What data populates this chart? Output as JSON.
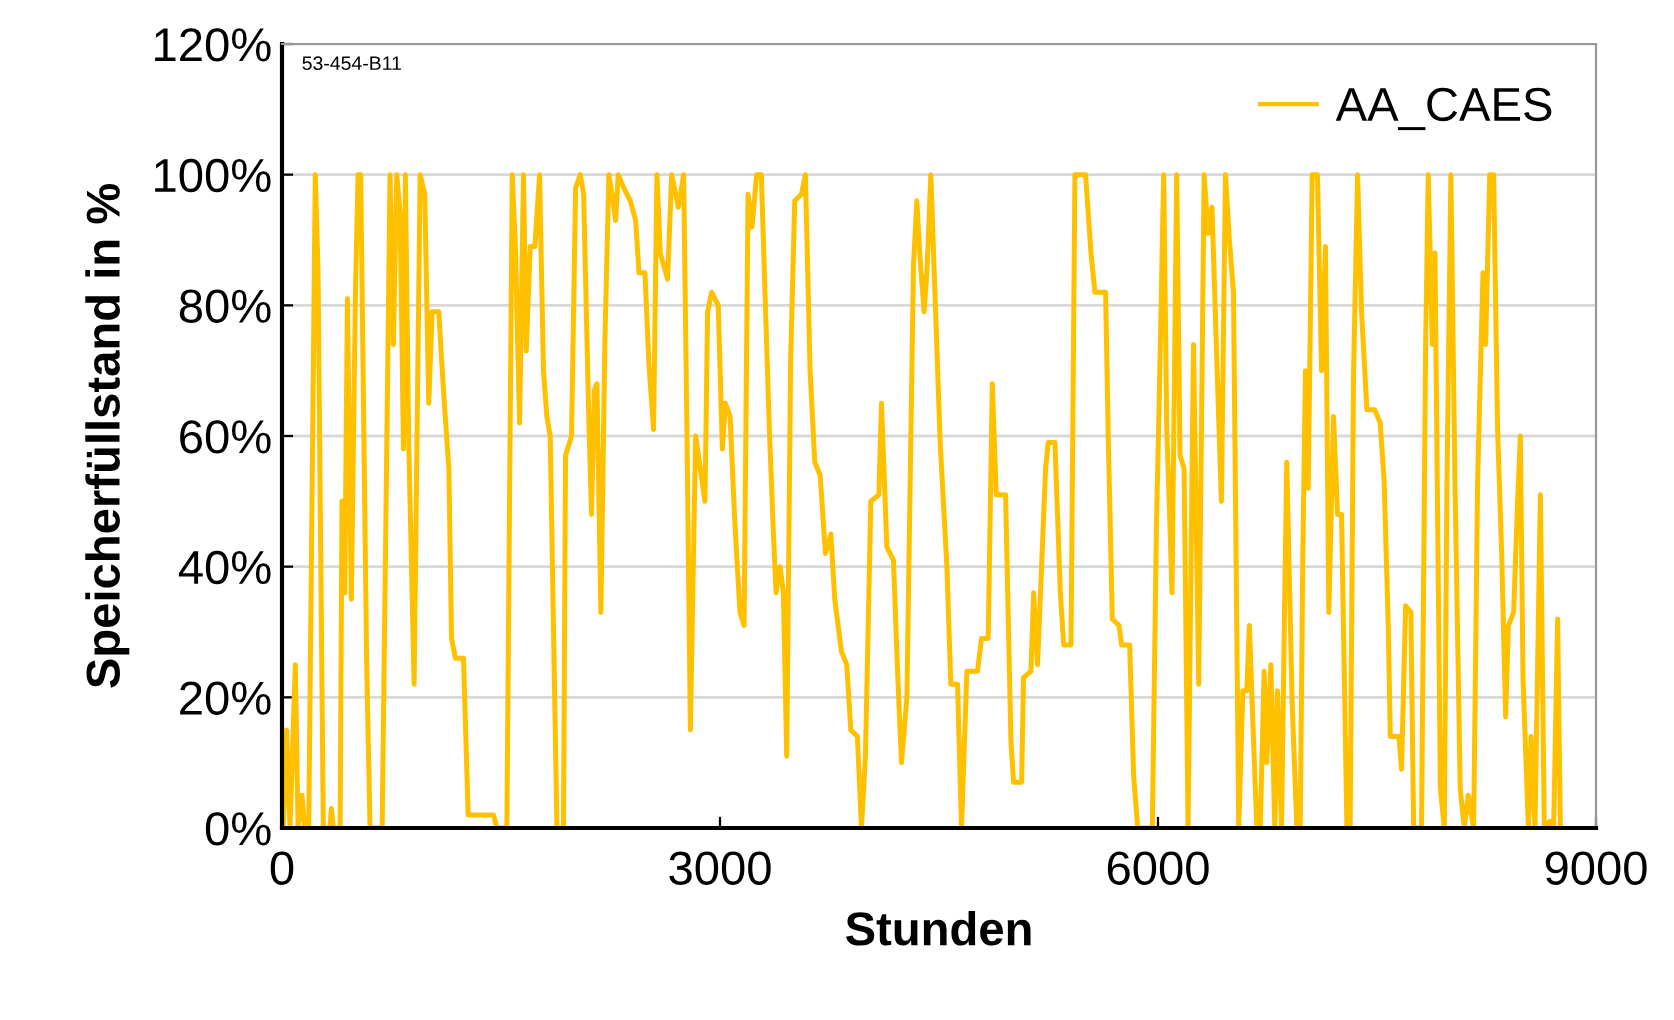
{
  "chart_data": {
    "type": "line",
    "xlabel": "Stunden",
    "ylabel": "Speicherfüllstand in %",
    "annotations": [
      "53-454-B11"
    ],
    "xlim": [
      0,
      9000
    ],
    "xticks": [
      0,
      3000,
      6000,
      9000
    ],
    "ylim": [
      0,
      120
    ],
    "yticks": [
      {
        "value": 0,
        "label": "0%"
      },
      {
        "value": 20,
        "label": "20%"
      },
      {
        "value": 40,
        "label": "40%"
      },
      {
        "value": 60,
        "label": "60%"
      },
      {
        "value": 80,
        "label": "80%"
      },
      {
        "value": 100,
        "label": "100%"
      },
      {
        "value": 120,
        "label": "120%"
      }
    ],
    "grid": "y",
    "legend": "top right",
    "marker": "none",
    "line_style": "solid",
    "series": [
      {
        "name": "AA_CAES",
        "color": "#ffc000",
        "x": [
          9,
          32,
          55,
          91,
          110,
          137,
          155,
          183,
          228,
          247,
          283,
          329,
          338,
          352,
          398,
          411,
          430,
          448,
          475,
          503,
          521,
          539,
          580,
          603,
          686,
          718,
          740,
          763,
          786,
          809,
          832,
          845,
          868,
          905,
          946,
          978,
          1005,
          1028,
          1074,
          1092,
          1115,
          1143,
          1161,
          1188,
          1243,
          1275,
          1449,
          1472,
          1540,
          1577,
          1600,
          1627,
          1654,
          1673,
          1700,
          1732,
          1764,
          1791,
          1814,
          1837,
          1883,
          1928,
          1942,
          1983,
          2011,
          2043,
          2066,
          2102,
          2120,
          2139,
          2157,
          2184,
          2212,
          2239,
          2267,
          2285,
          2303,
          2340,
          2386,
          2422,
          2445,
          2486,
          2513,
          2545,
          2568,
          2591,
          2641,
          2669,
          2715,
          2751,
          2774,
          2797,
          2833,
          2865,
          2897,
          2915,
          2943,
          2988,
          3016,
          3037,
          3069,
          3101,
          3137,
          3165,
          3192,
          3219,
          3251,
          3283,
          3311,
          3338,
          3366,
          3384,
          3411,
          3434,
          3457,
          3484,
          3512,
          3558,
          3585,
          3617,
          3649,
          3686,
          3722,
          3759,
          3786,
          3832,
          3868,
          3896,
          3941,
          3969,
          3996,
          4033,
          4088,
          4106,
          4143,
          4188,
          4216,
          4243,
          4280,
          4325,
          4348,
          4371,
          4398,
          4417,
          4444,
          4472,
          4508,
          4554,
          4581,
          4627,
          4654,
          4691,
          4764,
          4791,
          4837,
          4865,
          4892,
          4956,
          4993,
          5011,
          5066,
          5079,
          5130,
          5148,
          5175,
          5230,
          5248,
          5294,
          5331,
          5354,
          5404,
          5431,
          5504,
          5541,
          5568,
          5641,
          5660,
          5687,
          5733,
          5751,
          5806,
          5833,
          5861,
          5961,
          5989,
          6007,
          6039,
          6060,
          6078,
          6096,
          6128,
          6151,
          6179,
          6206,
          6243,
          6279,
          6316,
          6343,
          6370,
          6398,
          6434,
          6462,
          6489,
          6517,
          6553,
          6581,
          6608,
          6626,
          6645,
          6677,
          6700,
          6727,
          6745,
          6773,
          6800,
          6818,
          6846,
          6864,
          6882,
          6919,
          6951,
          6974,
          6992,
          7010,
          7029,
          7056,
          7092,
          7120,
          7147,
          7170,
          7202,
          7230,
          7257,
          7294,
          7316,
          7339,
          7367,
          7394,
          7431,
          7485,
          7522,
          7549,
          7577,
          7591,
          7650,
          7668,
          7696,
          7732,
          7751,
          7805,
          7833,
          7851,
          7879,
          7897,
          7934,
          7961,
          7979,
          8006,
          8034,
          8070,
          8098,
          8125,
          8162,
          8189,
          8226,
          8244,
          8272,
          8299,
          8326,
          8354,
          8381,
          8400,
          8436,
          8463,
          8482,
          8500,
          8537,
          8555,
          8582,
          8619,
          8646,
          8683,
          8710,
          8737,
          8756,
          8760
        ],
        "values": [
          0,
          15,
          0,
          25,
          0,
          5,
          0,
          0,
          100,
          85,
          0,
          0,
          3,
          0,
          0,
          50,
          36,
          81,
          35,
          82,
          100,
          100,
          25,
          0,
          0,
          59,
          100,
          74,
          100,
          94,
          58,
          100,
          59,
          22,
          100,
          97,
          65,
          79,
          79,
          72,
          64,
          55,
          29,
          26,
          26,
          2,
          2,
          0,
          0,
          100,
          88,
          62,
          100,
          73,
          89,
          89,
          100,
          70,
          63,
          60,
          0,
          0,
          57,
          60,
          98,
          100,
          97,
          62,
          48,
          67,
          68,
          33,
          75,
          100,
          96,
          93,
          100,
          98,
          96,
          93,
          85,
          85,
          71,
          61,
          100,
          88,
          84,
          100,
          95,
          100,
          60,
          15,
          60,
          55,
          50,
          79,
          82,
          80,
          58,
          65,
          63,
          47,
          33,
          31,
          97,
          92,
          100,
          100,
          80,
          61,
          45,
          36,
          40,
          36,
          11,
          72,
          96,
          97,
          100,
          70,
          56,
          54,
          42,
          45,
          35,
          27,
          25,
          15,
          14,
          0,
          11,
          50,
          51,
          65,
          43,
          41,
          24,
          10,
          20,
          86,
          96,
          87,
          79,
          85,
          100,
          82,
          59,
          40,
          22,
          22,
          0,
          24,
          24,
          29,
          29,
          68,
          51,
          51,
          13,
          7,
          7,
          23,
          24,
          36,
          25,
          55,
          59,
          59,
          36,
          28,
          28,
          100,
          100,
          88,
          82,
          82,
          59,
          32,
          31,
          28,
          28,
          8,
          0,
          0,
          46,
          64,
          100,
          61,
          49,
          36,
          100,
          57,
          55,
          0,
          74,
          22,
          100,
          91,
          95,
          75,
          50,
          100,
          90,
          82,
          0,
          21,
          21,
          31,
          19,
          0,
          0,
          24,
          10,
          25,
          0,
          21,
          0,
          29,
          56,
          19,
          0,
          0,
          42,
          70,
          52,
          100,
          100,
          70,
          89,
          33,
          63,
          48,
          48,
          0,
          0,
          69,
          100,
          79,
          64,
          64,
          62,
          53,
          31,
          14,
          14,
          9,
          34,
          33,
          0,
          0,
          74,
          100,
          74,
          88,
          6,
          0,
          53,
          100,
          53,
          6,
          0,
          5,
          0,
          53,
          85,
          74,
          100,
          100,
          61,
          42,
          17,
          31,
          33,
          50,
          60,
          23,
          0,
          14,
          0,
          51,
          0,
          1,
          0,
          32,
          0,
          0
        ]
      }
    ]
  }
}
